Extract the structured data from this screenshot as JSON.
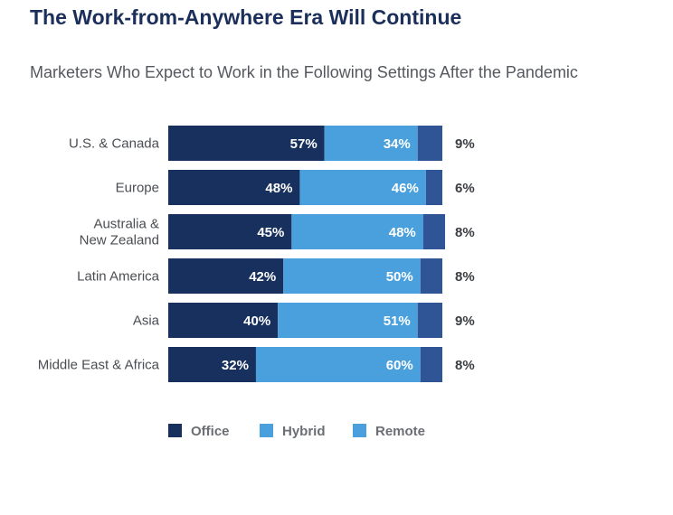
{
  "title": "The Work-from-Anywhere Era Will Continue",
  "subtitle": "Marketers Who Expect to Work in the Following Settings After the Pandemic",
  "colors": {
    "Office": "#17305e",
    "Hybrid": "#4aa0dc",
    "Remote": "#2f5596",
    "Remote_legend": "#4aa0dc"
  },
  "chart_data": {
    "type": "bar",
    "orientation": "horizontal",
    "stacked": true,
    "categories": [
      [
        "U.S. & Canada"
      ],
      [
        "Europe"
      ],
      [
        "Australia &",
        "New Zealand"
      ],
      [
        "Latin America"
      ],
      [
        "Asia"
      ],
      [
        "Middle East & Africa"
      ]
    ],
    "series": [
      {
        "name": "Office",
        "values": [
          57,
          48,
          45,
          42,
          40,
          32
        ]
      },
      {
        "name": "Hybrid",
        "values": [
          34,
          46,
          48,
          50,
          51,
          60
        ]
      },
      {
        "name": "Remote",
        "values": [
          9,
          6,
          8,
          8,
          9,
          8
        ]
      }
    ],
    "value_suffix": "%",
    "legend": [
      "Office",
      "Hybrid",
      "Remote"
    ],
    "legend_position": "bottom",
    "grid": false
  }
}
